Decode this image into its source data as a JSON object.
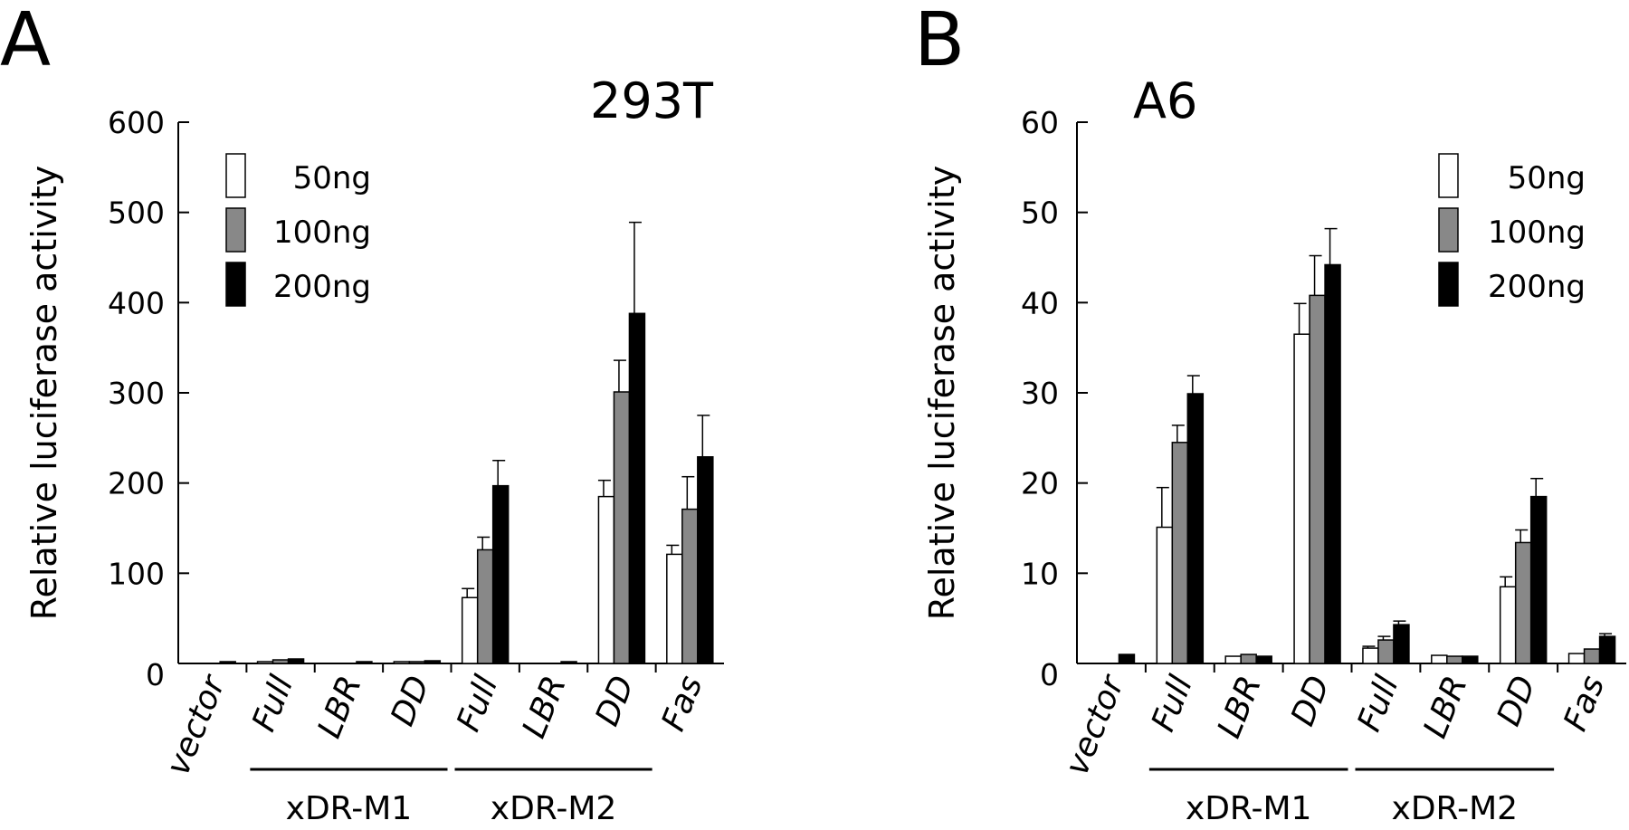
{
  "chart_data": [
    {
      "type": "bar",
      "panel_letter": "A",
      "title": "293T",
      "ylabel": "Relative luciferase activity",
      "ylim": [
        0,
        600
      ],
      "yticks": [
        "0",
        "100",
        "200",
        "300",
        "400",
        "500",
        "600"
      ],
      "categories": [
        "vector",
        "Full",
        "LBR",
        "DD",
        "Full",
        "LBR",
        "DD",
        "Fas"
      ],
      "groups": [
        {
          "label": "xDR-M1",
          "categories": [
            1,
            2,
            3
          ]
        },
        {
          "label": "xDR-M2",
          "categories": [
            4,
            5,
            6
          ]
        }
      ],
      "legend_position": "top-left",
      "series": [
        {
          "name": "50ng",
          "color": "#ffffff",
          "values": [
            0,
            2,
            0,
            2,
            73,
            0,
            185,
            121
          ],
          "err": [
            null,
            null,
            null,
            null,
            83,
            null,
            203,
            131
          ]
        },
        {
          "name": "100ng",
          "color": "#888888",
          "values": [
            0,
            4,
            0,
            2,
            126,
            0,
            301,
            171
          ],
          "err": [
            null,
            null,
            null,
            null,
            140,
            null,
            336,
            207
          ]
        },
        {
          "name": "200ng",
          "color": "#000000",
          "values": [
            2,
            5,
            2,
            3,
            197,
            2,
            388,
            229
          ],
          "err": [
            null,
            null,
            null,
            null,
            225,
            null,
            489,
            275
          ]
        }
      ]
    },
    {
      "type": "bar",
      "panel_letter": "B",
      "title": "A6",
      "ylabel": "Relative luciferase activity",
      "ylim": [
        0,
        60
      ],
      "yticks": [
        "0",
        "10",
        "20",
        "30",
        "40",
        "50",
        "60"
      ],
      "categories": [
        "vector",
        "Full",
        "LBR",
        "DD",
        "Full",
        "LBR",
        "DD",
        "Fas"
      ],
      "groups": [
        {
          "label": "xDR-M1",
          "categories": [
            1,
            2,
            3
          ]
        },
        {
          "label": "xDR-M2",
          "categories": [
            4,
            5,
            6
          ]
        }
      ],
      "legend_position": "top-right",
      "series": [
        {
          "name": "50ng",
          "color": "#ffffff",
          "values": [
            0,
            15.1,
            0.8,
            36.5,
            1.7,
            0.9,
            8.5,
            1.1
          ],
          "err": [
            null,
            19.5,
            null,
            39.9,
            1.9,
            null,
            9.6,
            null
          ]
        },
        {
          "name": "100ng",
          "color": "#888888",
          "values": [
            0,
            24.5,
            1.0,
            40.8,
            2.6,
            0.8,
            13.4,
            1.6
          ],
          "err": [
            null,
            26.4,
            null,
            45.2,
            3.0,
            null,
            14.8,
            null
          ]
        },
        {
          "name": "200ng",
          "color": "#000000",
          "values": [
            1.0,
            29.9,
            0.8,
            44.2,
            4.3,
            0.8,
            18.5,
            3.0
          ],
          "err": [
            null,
            31.9,
            null,
            48.2,
            4.7,
            null,
            20.5,
            3.3
          ]
        }
      ]
    }
  ]
}
